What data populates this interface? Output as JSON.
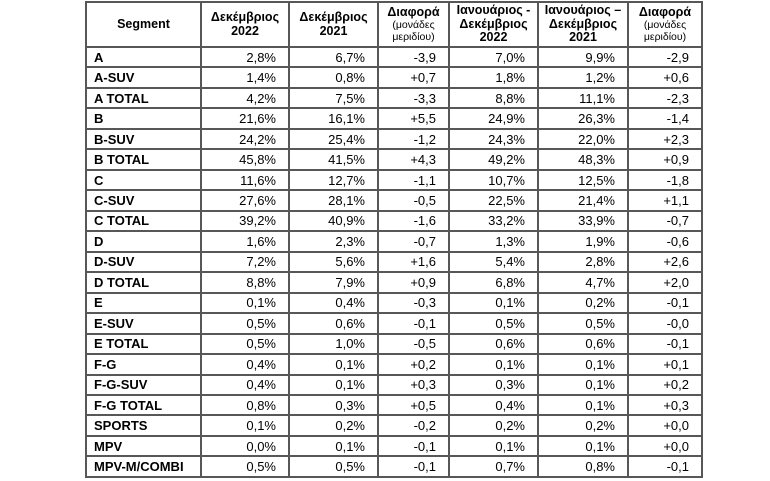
{
  "table": {
    "title": "Segment market share table",
    "columns": [
      {
        "key": "segment",
        "lines": [
          "Segment"
        ],
        "sub": []
      },
      {
        "key": "dec-2022",
        "lines": [
          "Δεκέμβριος",
          "2022"
        ],
        "sub": []
      },
      {
        "key": "dec-2021",
        "lines": [
          "Δεκέμβριος",
          "2021"
        ],
        "sub": []
      },
      {
        "key": "diff-dec",
        "lines": [
          "Διαφορά"
        ],
        "sub": [
          "(μονάδες",
          "μεριδίου)"
        ]
      },
      {
        "key": "jan-dec-2022",
        "lines": [
          "Ιανουάριος -",
          "Δεκέμβριος",
          "2022"
        ],
        "sub": []
      },
      {
        "key": "jan-dec-2021",
        "lines": [
          "Ιανουάριος –",
          "Δεκέμβριος",
          "2021"
        ],
        "sub": []
      },
      {
        "key": "diff-jan-dec",
        "lines": [
          "Διαφορά"
        ],
        "sub": [
          "(μονάδες",
          "μεριδίου)"
        ]
      }
    ],
    "rows": [
      {
        "segment": "A",
        "values": [
          "2,8%",
          "6,7%",
          "-3,9",
          "7,0%",
          "9,9%",
          "-2,9"
        ]
      },
      {
        "segment": "A-SUV",
        "values": [
          "1,4%",
          "0,8%",
          "+0,7",
          "1,8%",
          "1,2%",
          "+0,6"
        ]
      },
      {
        "segment": "A TOTAL",
        "values": [
          "4,2%",
          "7,5%",
          "-3,3",
          "8,8%",
          "11,1%",
          "-2,3"
        ]
      },
      {
        "segment": "B",
        "values": [
          "21,6%",
          "16,1%",
          "+5,5",
          "24,9%",
          "26,3%",
          "-1,4"
        ]
      },
      {
        "segment": "B-SUV",
        "values": [
          "24,2%",
          "25,4%",
          "-1,2",
          "24,3%",
          "22,0%",
          "+2,3"
        ]
      },
      {
        "segment": "B TOTAL",
        "values": [
          "45,8%",
          "41,5%",
          "+4,3",
          "49,2%",
          "48,3%",
          "+0,9"
        ]
      },
      {
        "segment": "C",
        "values": [
          "11,6%",
          "12,7%",
          "-1,1",
          "10,7%",
          "12,5%",
          "-1,8"
        ]
      },
      {
        "segment": "C-SUV",
        "values": [
          "27,6%",
          "28,1%",
          "-0,5",
          "22,5%",
          "21,4%",
          "+1,1"
        ]
      },
      {
        "segment": "C TOTAL",
        "values": [
          "39,2%",
          "40,9%",
          "-1,6",
          "33,2%",
          "33,9%",
          "-0,7"
        ]
      },
      {
        "segment": "D",
        "values": [
          "1,6%",
          "2,3%",
          "-0,7",
          "1,3%",
          "1,9%",
          "-0,6"
        ]
      },
      {
        "segment": "D-SUV",
        "values": [
          "7,2%",
          "5,6%",
          "+1,6",
          "5,4%",
          "2,8%",
          "+2,6"
        ]
      },
      {
        "segment": "D TOTAL",
        "values": [
          "8,8%",
          "7,9%",
          "+0,9",
          "6,8%",
          "4,7%",
          "+2,0"
        ]
      },
      {
        "segment": "E",
        "values": [
          "0,1%",
          "0,4%",
          "-0,3",
          "0,1%",
          "0,2%",
          "-0,1"
        ]
      },
      {
        "segment": "E-SUV",
        "values": [
          "0,5%",
          "0,6%",
          "-0,1",
          "0,5%",
          "0,5%",
          "-0,0"
        ]
      },
      {
        "segment": "E TOTAL",
        "values": [
          "0,5%",
          "1,0%",
          "-0,5",
          "0,6%",
          "0,6%",
          "-0,1"
        ]
      },
      {
        "segment": "F-G",
        "values": [
          "0,4%",
          "0,1%",
          "+0,2",
          "0,1%",
          "0,1%",
          "+0,1"
        ]
      },
      {
        "segment": "F-G-SUV",
        "values": [
          "0,4%",
          "0,1%",
          "+0,3",
          "0,3%",
          "0,1%",
          "+0,2"
        ]
      },
      {
        "segment": "F-G TOTAL",
        "values": [
          "0,8%",
          "0,3%",
          "+0,5",
          "0,4%",
          "0,1%",
          "+0,3"
        ]
      },
      {
        "segment": "SPORTS",
        "values": [
          "0,1%",
          "0,2%",
          "-0,2",
          "0,2%",
          "0,2%",
          "+0,0"
        ]
      },
      {
        "segment": "MPV",
        "values": [
          "0,0%",
          "0,1%",
          "-0,1",
          "0,1%",
          "0,1%",
          "+0,0"
        ]
      },
      {
        "segment": "MPV-M/COMBI",
        "values": [
          "0,5%",
          "0,5%",
          "-0,1",
          "0,7%",
          "0,8%",
          "-0,1"
        ]
      }
    ],
    "colors": {
      "border": "#575757",
      "text": "#000000",
      "background": "#ffffff"
    }
  }
}
